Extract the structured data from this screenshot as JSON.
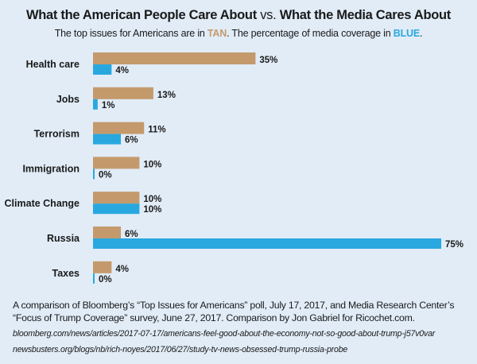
{
  "header": {
    "title_part1": "What the American People Care About",
    "title_vs": "vs.",
    "title_part2": "What the Media Cares About",
    "subtitle_pre": "The top issues for Americans are in ",
    "subtitle_tan": "TAN",
    "subtitle_mid": ". The percentage of media coverage in ",
    "subtitle_blue": "BLUE",
    "subtitle_post": "."
  },
  "colors": {
    "tan": "#c49a6c",
    "blue": "#29a8e0",
    "background": "#e1ecf7"
  },
  "chart_data": {
    "type": "bar",
    "orientation": "horizontal",
    "categories": [
      "Health care",
      "Jobs",
      "Terrorism",
      "Immigration",
      "Climate Change",
      "Russia",
      "Taxes"
    ],
    "series": [
      {
        "color": "tan",
        "values": [
          35,
          13,
          11,
          10,
          10,
          6,
          4
        ],
        "labels": [
          "35%",
          "13%",
          "11%",
          "10%",
          "10%",
          "6%",
          "4%"
        ]
      },
      {
        "color": "blue",
        "values": [
          4,
          1,
          6,
          0,
          10,
          75,
          0
        ],
        "labels": [
          "4%",
          "1%",
          "6%",
          "0%",
          "10%",
          "75%",
          "0%"
        ]
      }
    ],
    "xlim": [
      0,
      75
    ],
    "grid": false,
    "legend": "none"
  },
  "footer": {
    "line1": "A comparison of Bloomberg’s “Top Issues for Americans” poll, July 17, 2017, and Media Research Center’s",
    "line2": "“Focus of Trump Coverage” survey, June 27, 2017. Comparison by Jon Gabriel for Ricochet.com.",
    "url1": "bloomberg.com/news/articles/2017-07-17/americans-feel-good-about-the-economy-not-so-good-about-trump-j57v0var",
    "url2": "newsbusters.org/blogs/nb/rich-noyes/2017/06/27/study-tv-news-obsessed-trump-russia-probe"
  }
}
